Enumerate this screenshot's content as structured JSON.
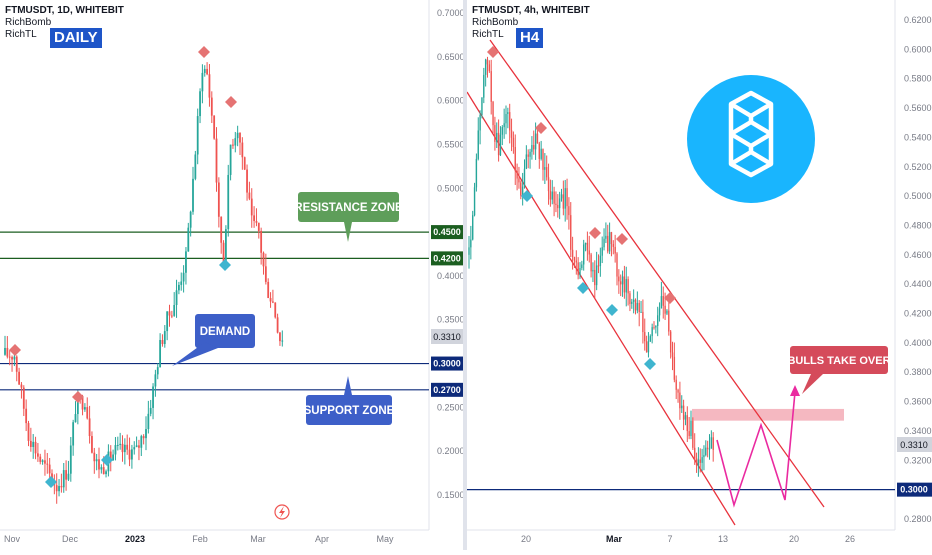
{
  "colors": {
    "up": "#26a69a",
    "down": "#ef5350",
    "support_line": "#0d2a7a",
    "resistance_line": "#1b5e20",
    "resistance_zone": "#5e9e5a",
    "support_zone_box": "#3d5fc8",
    "demand_box": "#3d5fc8",
    "bulls_box": "#d54b5b",
    "channel": "#e8323c",
    "projection": "#ea2aa0",
    "zone_fill": "#f3a6b2",
    "top_marker": "#e57373",
    "bottom_marker": "#3fb5cf",
    "badge": "#1e55c8",
    "logo_circle": "#19b5fe"
  },
  "left": {
    "header": {
      "symbol": "FTMUSDT, 1D, WHITEBIT",
      "indicator1": "RichBomb",
      "indicator2": "RichTL"
    },
    "timeframe_badge": "DAILY",
    "labels": {
      "resistance": "RESISTANCE ZONE",
      "demand": "DEMAND",
      "support": "SUPPORT ZONE"
    },
    "last_price": "0.3310"
  },
  "right": {
    "header": {
      "symbol": "FTMUSDT, 4h, WHITEBIT",
      "indicator1": "RichBomb",
      "indicator2": "RichTL"
    },
    "timeframe_badge": "H4",
    "labels": {
      "bulls": "BULLS TAKE OVER"
    },
    "last_price": "0.3310",
    "logo_icon": "fantom-logo-icon"
  },
  "chart_data": [
    {
      "type": "candlestick",
      "title": "FTMUSDT, 1D, WHITEBIT",
      "ylim": [
        0.12,
        0.71
      ],
      "y_ticks": [
        "0.7000",
        "0.6500",
        "0.6000",
        "0.5500",
        "0.5000",
        "0.4500",
        "0.4000",
        "0.3500",
        "0.3000",
        "0.2500",
        "0.2000",
        "0.1500"
      ],
      "x_ticks": [
        "Nov",
        "Dec",
        "2023",
        "Feb",
        "Mar",
        "Apr",
        "May"
      ],
      "horizontal_levels": [
        {
          "value": 0.45,
          "label": "0.4500",
          "kind": "resistance"
        },
        {
          "value": 0.42,
          "label": "0.4200",
          "kind": "resistance"
        },
        {
          "value": 0.3,
          "label": "0.3000",
          "kind": "support"
        },
        {
          "value": 0.27,
          "label": "0.2700",
          "kind": "support"
        }
      ],
      "last_price": 0.331,
      "path": [
        [
          0,
          0.31
        ],
        [
          4,
          0.31
        ],
        [
          10,
          0.22
        ],
        [
          15,
          0.19
        ],
        [
          22,
          0.16
        ],
        [
          27,
          0.18
        ],
        [
          30,
          0.25
        ],
        [
          34,
          0.26
        ],
        [
          38,
          0.19
        ],
        [
          41,
          0.18
        ],
        [
          47,
          0.2
        ],
        [
          56,
          0.2
        ],
        [
          60,
          0.23
        ],
        [
          63,
          0.27
        ],
        [
          66,
          0.32
        ],
        [
          69,
          0.35
        ],
        [
          72,
          0.37
        ],
        [
          77,
          0.42
        ],
        [
          80,
          0.51
        ],
        [
          84,
          0.64
        ],
        [
          86,
          0.63
        ],
        [
          89,
          0.56
        ],
        [
          91,
          0.46
        ],
        [
          93,
          0.42
        ],
        [
          96,
          0.55
        ],
        [
          99,
          0.57
        ],
        [
          102,
          0.52
        ],
        [
          105,
          0.46
        ],
        [
          108,
          0.45
        ],
        [
          111,
          0.39
        ],
        [
          114,
          0.37
        ],
        [
          117,
          0.33
        ],
        [
          118,
          0.331
        ]
      ]
    },
    {
      "type": "candlestick",
      "title": "FTMUSDT, 4h, WHITEBIT",
      "ylim": [
        0.275,
        0.63
      ],
      "y_ticks": [
        "0.6200",
        "0.6000",
        "0.5800",
        "0.5600",
        "0.5400",
        "0.5200",
        "0.5000",
        "0.4800",
        "0.4600",
        "0.4400",
        "0.4200",
        "0.4000",
        "0.3800",
        "0.3600",
        "0.3400",
        "0.3200",
        "0.2800"
      ],
      "x_ticks": [
        "20",
        "Mar",
        "7",
        "13",
        "20",
        "26"
      ],
      "horizontal_levels": [
        {
          "value": 0.3,
          "label": "0.3000",
          "kind": "support"
        }
      ],
      "last_price": 0.331,
      "path": [
        [
          0,
          0.46
        ],
        [
          3,
          0.5
        ],
        [
          6,
          0.56
        ],
        [
          10,
          0.595
        ],
        [
          13,
          0.55
        ],
        [
          16,
          0.53
        ],
        [
          20,
          0.56
        ],
        [
          24,
          0.53
        ],
        [
          28,
          0.5
        ],
        [
          32,
          0.53
        ],
        [
          36,
          0.54
        ],
        [
          40,
          0.52
        ],
        [
          44,
          0.505
        ],
        [
          48,
          0.495
        ],
        [
          52,
          0.5
        ],
        [
          56,
          0.46
        ],
        [
          60,
          0.45
        ],
        [
          64,
          0.47
        ],
        [
          68,
          0.44
        ],
        [
          72,
          0.465
        ],
        [
          76,
          0.47
        ],
        [
          80,
          0.45
        ],
        [
          84,
          0.44
        ],
        [
          88,
          0.43
        ],
        [
          92,
          0.42
        ],
        [
          96,
          0.395
        ],
        [
          100,
          0.41
        ],
        [
          104,
          0.43
        ],
        [
          108,
          0.41
        ],
        [
          112,
          0.37
        ],
        [
          116,
          0.35
        ],
        [
          120,
          0.34
        ],
        [
          124,
          0.315
        ],
        [
          128,
          0.325
        ],
        [
          132,
          0.331
        ]
      ],
      "channel": {
        "upper": [
          [
            0.593,
            0.605
          ],
          [
            0.293,
            0.79
          ]
        ],
        "lower": [
          [
            0.535,
            0.65
          ],
          [
            0.28,
            0.25
          ]
        ]
      },
      "resistance_zone": [
        0.355,
        0.347
      ],
      "projection": [
        0.326,
        0.29,
        0.348,
        0.295,
        0.37
      ]
    }
  ]
}
